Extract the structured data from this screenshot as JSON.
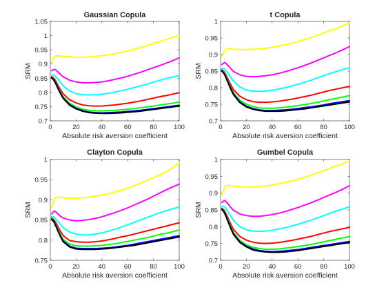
{
  "colors": {
    "background": "#ffffff",
    "axes": "#262626"
  },
  "chart_data": [
    {
      "type": "line",
      "title": "Gaussian Copula",
      "xlabel": "Absolute risk aversion coefficient",
      "ylabel": "SRM",
      "xlim": [
        0,
        100
      ],
      "ylim": [
        0.7,
        1.05
      ],
      "xticks": [
        0,
        20,
        40,
        60,
        80,
        100
      ],
      "yticks": [
        0.7,
        0.75,
        0.8,
        0.85,
        0.9,
        0.95,
        1,
        1.05
      ],
      "ytick_labels": [
        "0.7",
        "0.75",
        "0.8",
        "0.85",
        "0.9",
        "0.95",
        "1",
        "1.05"
      ],
      "grid": false,
      "x": [
        1,
        2,
        3,
        4,
        6,
        8,
        10,
        15,
        20,
        25,
        30,
        35,
        40,
        45,
        50,
        55,
        60,
        65,
        70,
        75,
        80,
        85,
        90,
        95,
        100
      ],
      "series": [
        {
          "color": "#ffff00",
          "values": [
            0.905,
            0.915,
            0.923,
            0.928,
            0.929,
            0.928,
            0.927,
            0.925,
            0.924,
            0.924,
            0.925,
            0.927,
            0.929,
            0.932,
            0.936,
            0.941,
            0.946,
            0.952,
            0.958,
            0.965,
            0.972,
            0.979,
            0.986,
            0.994,
            1.0
          ]
        },
        {
          "color": "#ff00ff",
          "values": [
            0.876,
            0.879,
            0.881,
            0.88,
            0.872,
            0.863,
            0.855,
            0.843,
            0.837,
            0.834,
            0.834,
            0.835,
            0.837,
            0.841,
            0.846,
            0.851,
            0.857,
            0.864,
            0.871,
            0.879,
            0.887,
            0.895,
            0.903,
            0.912,
            0.922
          ]
        },
        {
          "color": "#00ffff",
          "values": [
            0.862,
            0.862,
            0.861,
            0.857,
            0.847,
            0.835,
            0.823,
            0.805,
            0.796,
            0.792,
            0.791,
            0.792,
            0.794,
            0.797,
            0.801,
            0.806,
            0.811,
            0.817,
            0.823,
            0.829,
            0.836,
            0.843,
            0.849,
            0.854,
            0.859
          ]
        },
        {
          "color": "#ff0000",
          "values": [
            0.856,
            0.853,
            0.849,
            0.842,
            0.825,
            0.809,
            0.795,
            0.774,
            0.763,
            0.756,
            0.753,
            0.752,
            0.752,
            0.754,
            0.756,
            0.759,
            0.762,
            0.766,
            0.77,
            0.775,
            0.78,
            0.785,
            0.789,
            0.794,
            0.799
          ]
        },
        {
          "color": "#00ff00",
          "values": [
            0.853,
            0.849,
            0.844,
            0.836,
            0.818,
            0.8,
            0.785,
            0.762,
            0.749,
            0.741,
            0.737,
            0.735,
            0.735,
            0.736,
            0.737,
            0.739,
            0.741,
            0.743,
            0.746,
            0.749,
            0.752,
            0.756,
            0.759,
            0.762,
            0.766
          ]
        },
        {
          "color": "#0000ff",
          "values": [
            0.852,
            0.848,
            0.842,
            0.834,
            0.815,
            0.797,
            0.781,
            0.757,
            0.744,
            0.736,
            0.731,
            0.729,
            0.728,
            0.729,
            0.73,
            0.731,
            0.733,
            0.735,
            0.737,
            0.74,
            0.743,
            0.746,
            0.749,
            0.752,
            0.755
          ]
        },
        {
          "color": "#000000",
          "values": [
            0.851,
            0.847,
            0.841,
            0.833,
            0.813,
            0.795,
            0.779,
            0.755,
            0.742,
            0.734,
            0.729,
            0.727,
            0.726,
            0.726,
            0.727,
            0.728,
            0.73,
            0.732,
            0.734,
            0.737,
            0.74,
            0.743,
            0.746,
            0.749,
            0.752
          ]
        }
      ]
    },
    {
      "type": "line",
      "title": "t Copula",
      "xlabel": "Absolute risk aversion coefficient",
      "ylabel": "SRM",
      "xlim": [
        0,
        100
      ],
      "ylim": [
        0.7,
        1.0
      ],
      "xticks": [
        0,
        20,
        40,
        60,
        80,
        100
      ],
      "yticks": [
        0.7,
        0.75,
        0.8,
        0.85,
        0.9,
        0.95,
        1
      ],
      "ytick_labels": [
        "0.7",
        "0.75",
        "0.8",
        "0.85",
        "0.9",
        "0.95",
        "1"
      ],
      "grid": false,
      "x": [
        1,
        2,
        3,
        4,
        6,
        8,
        10,
        15,
        20,
        25,
        30,
        35,
        40,
        45,
        50,
        55,
        60,
        65,
        70,
        75,
        80,
        85,
        90,
        95,
        100
      ],
      "series": [
        {
          "color": "#ffff00",
          "values": [
            0.895,
            0.9,
            0.91,
            0.916,
            0.918,
            0.917,
            0.916,
            0.915,
            0.915,
            0.916,
            0.917,
            0.919,
            0.922,
            0.925,
            0.929,
            0.934,
            0.939,
            0.945,
            0.951,
            0.958,
            0.965,
            0.972,
            0.979,
            0.987,
            0.995
          ]
        },
        {
          "color": "#ff00ff",
          "values": [
            0.87,
            0.873,
            0.876,
            0.874,
            0.866,
            0.857,
            0.849,
            0.839,
            0.834,
            0.833,
            0.834,
            0.836,
            0.839,
            0.843,
            0.848,
            0.854,
            0.86,
            0.867,
            0.874,
            0.882,
            0.89,
            0.898,
            0.906,
            0.915,
            0.924
          ]
        },
        {
          "color": "#00ffff",
          "values": [
            0.858,
            0.858,
            0.857,
            0.853,
            0.842,
            0.831,
            0.82,
            0.802,
            0.793,
            0.789,
            0.789,
            0.79,
            0.792,
            0.796,
            0.8,
            0.805,
            0.81,
            0.816,
            0.822,
            0.829,
            0.836,
            0.843,
            0.849,
            0.855,
            0.86
          ]
        },
        {
          "color": "#ff0000",
          "values": [
            0.854,
            0.851,
            0.847,
            0.84,
            0.824,
            0.808,
            0.794,
            0.774,
            0.764,
            0.758,
            0.756,
            0.756,
            0.757,
            0.759,
            0.762,
            0.765,
            0.769,
            0.773,
            0.777,
            0.782,
            0.787,
            0.792,
            0.796,
            0.8,
            0.804
          ]
        },
        {
          "color": "#00ff00",
          "values": [
            0.852,
            0.848,
            0.843,
            0.835,
            0.817,
            0.8,
            0.785,
            0.762,
            0.75,
            0.743,
            0.739,
            0.738,
            0.738,
            0.739,
            0.741,
            0.743,
            0.746,
            0.749,
            0.752,
            0.756,
            0.76,
            0.764,
            0.768,
            0.772,
            0.776
          ]
        },
        {
          "color": "#0000ff",
          "values": [
            0.851,
            0.847,
            0.841,
            0.833,
            0.814,
            0.797,
            0.781,
            0.757,
            0.744,
            0.737,
            0.733,
            0.731,
            0.731,
            0.732,
            0.733,
            0.735,
            0.737,
            0.74,
            0.742,
            0.745,
            0.748,
            0.752,
            0.755,
            0.758,
            0.761
          ]
        },
        {
          "color": "#000000",
          "values": [
            0.85,
            0.846,
            0.84,
            0.832,
            0.813,
            0.795,
            0.779,
            0.755,
            0.742,
            0.735,
            0.731,
            0.729,
            0.729,
            0.729,
            0.73,
            0.732,
            0.734,
            0.736,
            0.739,
            0.742,
            0.745,
            0.748,
            0.751,
            0.754,
            0.757
          ]
        }
      ]
    },
    {
      "type": "line",
      "title": "Clayton Copula",
      "xlabel": "Absolute risk aversion coefficient",
      "ylabel": "SRM",
      "xlim": [
        0,
        100
      ],
      "ylim": [
        0.75,
        1.0
      ],
      "xticks": [
        0,
        20,
        40,
        60,
        80,
        100
      ],
      "yticks": [
        0.75,
        0.8,
        0.85,
        0.9,
        0.95,
        1
      ],
      "ytick_labels": [
        "0.75",
        "0.8",
        "0.85",
        "0.9",
        "0.95",
        "1"
      ],
      "grid": false,
      "x": [
        1,
        2,
        3,
        4,
        6,
        8,
        10,
        15,
        20,
        25,
        30,
        35,
        40,
        45,
        50,
        55,
        60,
        65,
        70,
        75,
        80,
        85,
        90,
        95,
        100
      ],
      "series": [
        {
          "color": "#ffff00",
          "values": [
            0.88,
            0.89,
            0.9,
            0.905,
            0.907,
            0.906,
            0.905,
            0.904,
            0.904,
            0.905,
            0.907,
            0.909,
            0.912,
            0.915,
            0.919,
            0.924,
            0.929,
            0.935,
            0.941,
            0.948,
            0.955,
            0.962,
            0.97,
            0.979,
            0.992
          ]
        },
        {
          "color": "#ff00ff",
          "values": [
            0.865,
            0.868,
            0.872,
            0.871,
            0.865,
            0.859,
            0.855,
            0.85,
            0.848,
            0.849,
            0.851,
            0.854,
            0.858,
            0.863,
            0.868,
            0.874,
            0.88,
            0.887,
            0.894,
            0.901,
            0.909,
            0.917,
            0.925,
            0.932,
            0.939
          ]
        },
        {
          "color": "#00ffff",
          "values": [
            0.858,
            0.858,
            0.857,
            0.854,
            0.846,
            0.838,
            0.831,
            0.82,
            0.815,
            0.813,
            0.813,
            0.815,
            0.818,
            0.822,
            0.827,
            0.832,
            0.838,
            0.844,
            0.85,
            0.856,
            0.862,
            0.868,
            0.873,
            0.878,
            0.882
          ]
        },
        {
          "color": "#ff0000",
          "values": [
            0.855,
            0.853,
            0.85,
            0.845,
            0.833,
            0.821,
            0.811,
            0.799,
            0.796,
            0.795,
            0.795,
            0.796,
            0.798,
            0.801,
            0.804,
            0.808,
            0.811,
            0.815,
            0.819,
            0.823,
            0.827,
            0.831,
            0.835,
            0.839,
            0.843
          ]
        },
        {
          "color": "#00ff00",
          "values": [
            0.853,
            0.85,
            0.846,
            0.84,
            0.826,
            0.813,
            0.802,
            0.79,
            0.786,
            0.785,
            0.785,
            0.786,
            0.787,
            0.789,
            0.791,
            0.794,
            0.797,
            0.8,
            0.803,
            0.806,
            0.81,
            0.814,
            0.817,
            0.821,
            0.825
          ]
        },
        {
          "color": "#0000ff",
          "values": [
            0.852,
            0.849,
            0.845,
            0.838,
            0.823,
            0.809,
            0.798,
            0.785,
            0.78,
            0.779,
            0.779,
            0.779,
            0.78,
            0.781,
            0.783,
            0.785,
            0.787,
            0.79,
            0.793,
            0.796,
            0.799,
            0.802,
            0.805,
            0.808,
            0.811
          ]
        },
        {
          "color": "#000000",
          "values": [
            0.851,
            0.848,
            0.844,
            0.837,
            0.822,
            0.808,
            0.796,
            0.783,
            0.778,
            0.777,
            0.777,
            0.777,
            0.778,
            0.779,
            0.781,
            0.783,
            0.785,
            0.787,
            0.79,
            0.793,
            0.796,
            0.799,
            0.802,
            0.805,
            0.808
          ]
        }
      ]
    },
    {
      "type": "line",
      "title": "Gumbel Copula",
      "xlabel": "Absolute risk aversion coefficient",
      "ylabel": "SRM",
      "xlim": [
        0,
        100
      ],
      "ylim": [
        0.7,
        1.0
      ],
      "xticks": [
        0,
        20,
        40,
        60,
        80,
        100
      ],
      "yticks": [
        0.7,
        0.75,
        0.8,
        0.85,
        0.9,
        0.95,
        1
      ],
      "ytick_labels": [
        "0.7",
        "0.75",
        "0.8",
        "0.85",
        "0.9",
        "0.95",
        "1"
      ],
      "grid": false,
      "x": [
        1,
        2,
        3,
        4,
        6,
        8,
        10,
        15,
        20,
        25,
        30,
        35,
        40,
        45,
        50,
        55,
        60,
        65,
        70,
        75,
        80,
        85,
        90,
        95,
        100
      ],
      "series": [
        {
          "color": "#ffff00",
          "values": [
            0.895,
            0.905,
            0.915,
            0.921,
            0.923,
            0.922,
            0.921,
            0.919,
            0.918,
            0.918,
            0.919,
            0.921,
            0.924,
            0.927,
            0.931,
            0.936,
            0.941,
            0.947,
            0.953,
            0.96,
            0.967,
            0.974,
            0.981,
            0.988,
            0.995
          ]
        },
        {
          "color": "#ff00ff",
          "values": [
            0.872,
            0.875,
            0.878,
            0.876,
            0.867,
            0.857,
            0.849,
            0.838,
            0.833,
            0.831,
            0.831,
            0.833,
            0.836,
            0.84,
            0.845,
            0.851,
            0.857,
            0.864,
            0.871,
            0.879,
            0.887,
            0.895,
            0.903,
            0.912,
            0.922
          ]
        },
        {
          "color": "#00ffff",
          "values": [
            0.86,
            0.86,
            0.859,
            0.855,
            0.843,
            0.831,
            0.819,
            0.8,
            0.791,
            0.787,
            0.786,
            0.787,
            0.789,
            0.793,
            0.797,
            0.802,
            0.807,
            0.813,
            0.819,
            0.826,
            0.833,
            0.84,
            0.847,
            0.853,
            0.859
          ]
        },
        {
          "color": "#ff0000",
          "values": [
            0.855,
            0.852,
            0.848,
            0.841,
            0.824,
            0.807,
            0.792,
            0.771,
            0.76,
            0.754,
            0.751,
            0.75,
            0.751,
            0.753,
            0.756,
            0.759,
            0.763,
            0.767,
            0.771,
            0.776,
            0.781,
            0.786,
            0.79,
            0.794,
            0.798
          ]
        },
        {
          "color": "#00ff00",
          "values": [
            0.853,
            0.849,
            0.844,
            0.836,
            0.817,
            0.799,
            0.783,
            0.759,
            0.746,
            0.739,
            0.735,
            0.733,
            0.733,
            0.734,
            0.736,
            0.738,
            0.741,
            0.744,
            0.747,
            0.751,
            0.755,
            0.759,
            0.763,
            0.767,
            0.771
          ]
        },
        {
          "color": "#0000ff",
          "values": [
            0.852,
            0.848,
            0.842,
            0.834,
            0.814,
            0.796,
            0.779,
            0.755,
            0.742,
            0.734,
            0.729,
            0.727,
            0.726,
            0.727,
            0.728,
            0.73,
            0.732,
            0.735,
            0.738,
            0.741,
            0.744,
            0.747,
            0.75,
            0.753,
            0.756
          ]
        },
        {
          "color": "#000000",
          "values": [
            0.851,
            0.847,
            0.841,
            0.833,
            0.813,
            0.794,
            0.777,
            0.753,
            0.74,
            0.731,
            0.727,
            0.725,
            0.724,
            0.724,
            0.725,
            0.727,
            0.729,
            0.732,
            0.735,
            0.738,
            0.741,
            0.744,
            0.747,
            0.75,
            0.753
          ]
        }
      ]
    }
  ]
}
